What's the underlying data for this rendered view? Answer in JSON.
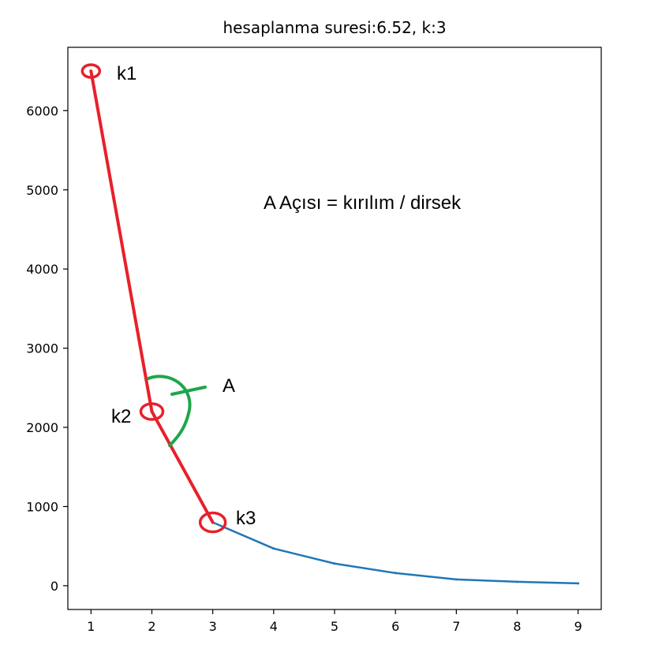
{
  "chart_data": {
    "type": "line",
    "title": "hesaplanma suresi:6.52, k:3",
    "x": [
      1,
      2,
      3,
      4,
      5,
      6,
      7,
      8,
      9
    ],
    "series": [
      {
        "values": [
          6500,
          2200,
          800,
          470,
          280,
          160,
          80,
          50,
          30
        ]
      }
    ],
    "xlim": [
      0.62,
      9.38
    ],
    "ylim": [
      -300,
      6800
    ],
    "xticks": [
      "1",
      "2",
      "3",
      "4",
      "5",
      "6",
      "7",
      "8",
      "9"
    ],
    "yticks": [
      "0",
      "1000",
      "2000",
      "3000",
      "4000",
      "5000",
      "6000"
    ],
    "xlabel": "",
    "ylabel": "",
    "grid": false,
    "line_color": "#1f77b4",
    "annotations": {
      "k1": "k1",
      "k2": "k2",
      "k3": "k3",
      "angle_label": "A",
      "note": "A  Açısı = kırılım / dirsek",
      "highlight_color": "#e8202a",
      "angle_color": "#1ea64a"
    }
  }
}
